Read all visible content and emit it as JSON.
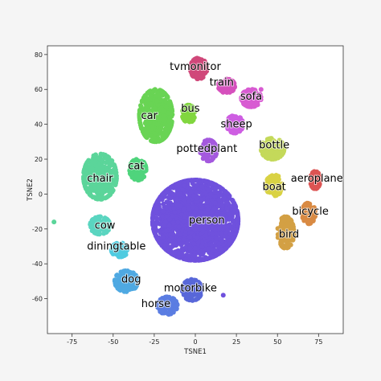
{
  "chart_data": {
    "type": "scatter",
    "title": "",
    "xlabel": "TSNE1",
    "ylabel": "TSNE2",
    "xlim": [
      -90,
      90
    ],
    "ylim": [
      -80,
      85
    ],
    "xticks": [
      -75,
      -50,
      -25,
      0,
      25,
      50,
      75
    ],
    "yticks": [
      -60,
      -40,
      -20,
      0,
      20,
      40,
      60,
      80
    ],
    "grid": false,
    "legend": "none",
    "clusters": [
      {
        "name": "tvmonitor",
        "color": "#d0487a",
        "center": [
          2,
          72
        ],
        "spread": [
          5,
          6
        ],
        "label_at": [
          0,
          73
        ]
      },
      {
        "name": "train",
        "color": "#d650bd",
        "center": [
          19,
          62
        ],
        "spread": [
          5,
          4
        ],
        "label_at": [
          16,
          64
        ]
      },
      {
        "name": "sofa",
        "color": "#d85bd2",
        "center": [
          34,
          55
        ],
        "spread": [
          6,
          5
        ],
        "label_at": [
          34,
          56
        ]
      },
      {
        "name": "bus",
        "color": "#81d63f",
        "center": [
          -4,
          46
        ],
        "spread": [
          4,
          5
        ],
        "label_at": [
          -3,
          49
        ]
      },
      {
        "name": "car",
        "color": "#69d454",
        "center": [
          -24,
          45
        ],
        "spread": [
          10,
          15
        ],
        "label_at": [
          -28,
          45
        ]
      },
      {
        "name": "sheep",
        "color": "#ce5ee2",
        "center": [
          24,
          40
        ],
        "spread": [
          5,
          5
        ],
        "label_at": [
          25,
          40
        ]
      },
      {
        "name": "bottle",
        "color": "#c4d95a",
        "center": [
          47,
          26
        ],
        "spread": [
          7,
          6
        ],
        "label_at": [
          48,
          28
        ]
      },
      {
        "name": "pottedplant",
        "color": "#a459de",
        "center": [
          8,
          25
        ],
        "spread": [
          5,
          6
        ],
        "label_at": [
          7,
          26
        ]
      },
      {
        "name": "cat",
        "color": "#4fd47c",
        "center": [
          -35,
          14
        ],
        "spread": [
          5,
          6
        ],
        "label_at": [
          -36,
          16
        ]
      },
      {
        "name": "chair",
        "color": "#5bd59a",
        "center": [
          -58,
          10
        ],
        "spread": [
          10,
          13
        ],
        "label_at": [
          -58,
          9
        ]
      },
      {
        "name": "aeroplane",
        "color": "#dc5453",
        "center": [
          73,
          8
        ],
        "spread": [
          3,
          5
        ],
        "label_at": [
          74,
          9
        ]
      },
      {
        "name": "boat",
        "color": "#d9d244",
        "center": [
          48,
          5
        ],
        "spread": [
          5,
          6
        ],
        "label_at": [
          48,
          4
        ]
      },
      {
        "name": "bicycle",
        "color": "#d98a43",
        "center": [
          69,
          -11
        ],
        "spread": [
          4,
          6
        ],
        "label_at": [
          70,
          -10
        ]
      },
      {
        "name": "person",
        "color": "#6f51dd",
        "center": [
          0,
          -15
        ],
        "spread": [
          26,
          23
        ],
        "label_at": [
          7,
          -15
        ]
      },
      {
        "name": "bird",
        "color": "#d3a044",
        "center": [
          55,
          -22
        ],
        "spread": [
          5,
          9
        ],
        "label_at": [
          57,
          -23
        ]
      },
      {
        "name": "cow",
        "color": "#5ad5c0",
        "center": [
          -58,
          -18
        ],
        "spread": [
          6,
          5
        ],
        "label_at": [
          -55,
          -18
        ]
      },
      {
        "name": "diningtable",
        "color": "#4fcbe0",
        "center": [
          -46,
          -32
        ],
        "spread": [
          5,
          4
        ],
        "label_at": [
          -48,
          -30
        ]
      },
      {
        "name": "dog",
        "color": "#4fa9e2",
        "center": [
          -42,
          -50
        ],
        "spread": [
          7,
          6
        ],
        "label_at": [
          -39,
          -49
        ]
      },
      {
        "name": "motorbike",
        "color": "#5867d9",
        "center": [
          -2,
          -55
        ],
        "spread": [
          6,
          6
        ],
        "label_at": [
          -3,
          -54
        ]
      },
      {
        "name": "horse",
        "color": "#5b7de2",
        "center": [
          -17,
          -64
        ],
        "spread": [
          6,
          5
        ],
        "label_at": [
          -24,
          -63
        ]
      }
    ],
    "outliers": [
      {
        "x": -86,
        "y": -16,
        "cluster": "chair"
      },
      {
        "x": 17,
        "y": -58,
        "cluster": "person"
      },
      {
        "x": 40,
        "y": 60,
        "cluster": "sofa"
      }
    ]
  }
}
